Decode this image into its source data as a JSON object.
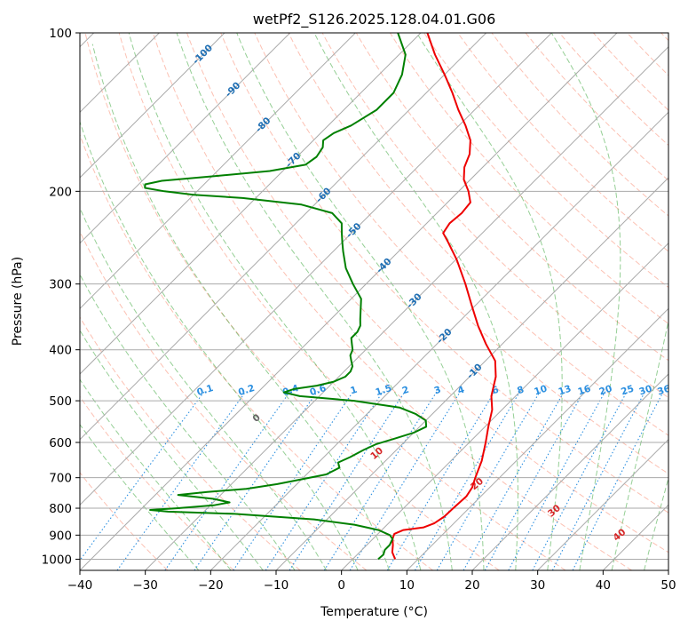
{
  "chart_data": {
    "type": "line",
    "subtype": "skew-t log-p diagram",
    "title": "wetPf2_S126.2025.128.04.01.G06",
    "xlabel": "Temperature (°C)",
    "ylabel": "Pressure (hPa)",
    "xlim": [
      -40,
      50
    ],
    "ylim": [
      1050,
      100
    ],
    "y_scale": "log",
    "skew_deg": 45,
    "x_ticks": [
      "−40",
      "−30",
      "−20",
      "−10",
      "0",
      "10",
      "20",
      "30",
      "40",
      "50"
    ],
    "x_tick_values": [
      -40,
      -30,
      -20,
      -10,
      0,
      10,
      20,
      30,
      40,
      50
    ],
    "y_ticks": [
      "100",
      "200",
      "300",
      "400",
      "500",
      "600",
      "700",
      "800",
      "900",
      "1000"
    ],
    "y_tick_values": [
      100,
      200,
      300,
      400,
      500,
      600,
      700,
      800,
      900,
      1000
    ],
    "grid": true,
    "colors": {
      "temperature": "#ee0000",
      "dewpoint": "#008000",
      "isotherm": "#aaaaaa",
      "dry_adiabat": "#fa8e74",
      "moist_adiabat": "#2ca02c",
      "mixing_ratio": "#2b8fe0",
      "isotherm_label": "#1f6fb4",
      "mixing_label": "#2b8fe0",
      "moist_label": "#d62728",
      "moist_zero_label": "#666666",
      "grid": "#aaaaaa"
    },
    "isotherm_labels": [
      {
        "value": -100,
        "text": "-100"
      },
      {
        "value": -90,
        "text": "-90"
      },
      {
        "value": -80,
        "text": "-80"
      },
      {
        "value": -70,
        "text": "-70"
      },
      {
        "value": -60,
        "text": "-60"
      },
      {
        "value": -50,
        "text": "-50"
      },
      {
        "value": -40,
        "text": "-40"
      },
      {
        "value": -30,
        "text": "-30"
      },
      {
        "value": -20,
        "text": "-20"
      },
      {
        "value": -10,
        "text": "-10"
      }
    ],
    "mixing_ratio_labels": [
      "0.1",
      "0.2",
      "0.4",
      "0.6",
      "1",
      "1.5",
      "2",
      "3",
      "4",
      "6",
      "8",
      "10",
      "13",
      "16",
      "20",
      "25",
      "30",
      "36"
    ],
    "mixing_ratio_values": [
      0.1,
      0.2,
      0.4,
      0.6,
      1,
      1.5,
      2,
      3,
      4,
      6,
      8,
      10,
      13,
      16,
      20,
      25,
      30,
      36
    ],
    "moist_adiabat_labels": [
      {
        "text": "0",
        "theta_w": 0
      },
      {
        "text": "10",
        "theta_w": 10
      },
      {
        "text": "20",
        "theta_w": 20
      },
      {
        "text": "30",
        "theta_w": 30
      },
      {
        "text": "40",
        "theta_w": 40
      }
    ],
    "series": [
      {
        "role": "temperature",
        "color": "#ee0000",
        "points": [
          {
            "p": 1000,
            "t": 6.5
          },
          {
            "p": 970,
            "t": 5.0
          },
          {
            "p": 940,
            "t": 4.0
          },
          {
            "p": 915,
            "t": 3.0
          },
          {
            "p": 895,
            "t": 2.5
          },
          {
            "p": 880,
            "t": 3.3
          },
          {
            "p": 870,
            "t": 6.0
          },
          {
            "p": 855,
            "t": 7.0
          },
          {
            "p": 830,
            "t": 7.5
          },
          {
            "p": 800,
            "t": 7.6
          },
          {
            "p": 760,
            "t": 7.8
          },
          {
            "p": 730,
            "t": 7.3
          },
          {
            "p": 700,
            "t": 6.3
          },
          {
            "p": 650,
            "t": 4.7
          },
          {
            "p": 600,
            "t": 2.5
          },
          {
            "p": 560,
            "t": 0.5
          },
          {
            "p": 520,
            "t": -1.5
          },
          {
            "p": 490,
            "t": -3.7
          },
          {
            "p": 450,
            "t": -6.0
          },
          {
            "p": 420,
            "t": -8.5
          },
          {
            "p": 390,
            "t": -12.5
          },
          {
            "p": 360,
            "t": -16.5
          },
          {
            "p": 330,
            "t": -20.5
          },
          {
            "p": 300,
            "t": -24.8
          },
          {
            "p": 270,
            "t": -29.8
          },
          {
            "p": 250,
            "t": -33.8
          },
          {
            "p": 240,
            "t": -36.0
          },
          {
            "p": 230,
            "t": -36.5
          },
          {
            "p": 220,
            "t": -36.2
          },
          {
            "p": 210,
            "t": -36.5
          },
          {
            "p": 200,
            "t": -38.5
          },
          {
            "p": 190,
            "t": -41.0
          },
          {
            "p": 180,
            "t": -42.8
          },
          {
            "p": 170,
            "t": -44.0
          },
          {
            "p": 160,
            "t": -46.0
          },
          {
            "p": 150,
            "t": -49.0
          },
          {
            "p": 140,
            "t": -52.5
          },
          {
            "p": 130,
            "t": -56.0
          },
          {
            "p": 120,
            "t": -60.0
          },
          {
            "p": 110,
            "t": -64.5
          },
          {
            "p": 100,
            "t": -69.0
          }
        ]
      },
      {
        "role": "dewpoint",
        "color": "#008000",
        "points": [
          {
            "p": 1000,
            "t": 3.9
          },
          {
            "p": 980,
            "t": 4.0
          },
          {
            "p": 960,
            "t": 3.5
          },
          {
            "p": 940,
            "t": 3.5
          },
          {
            "p": 915,
            "t": 3.0
          },
          {
            "p": 900,
            "t": 2.0
          },
          {
            "p": 880,
            "t": -0.5
          },
          {
            "p": 860,
            "t": -5.0
          },
          {
            "p": 840,
            "t": -12.0
          },
          {
            "p": 820,
            "t": -25.0
          },
          {
            "p": 812,
            "t": -35.5
          },
          {
            "p": 806,
            "t": -38.5
          },
          {
            "p": 800,
            "t": -34.5
          },
          {
            "p": 790,
            "t": -29.5
          },
          {
            "p": 780,
            "t": -27.5
          },
          {
            "p": 768,
            "t": -30.5
          },
          {
            "p": 755,
            "t": -36.5
          },
          {
            "p": 745,
            "t": -32.5
          },
          {
            "p": 735,
            "t": -27.0
          },
          {
            "p": 720,
            "t": -23.0
          },
          {
            "p": 705,
            "t": -20.0
          },
          {
            "p": 690,
            "t": -17.0
          },
          {
            "p": 670,
            "t": -16.0
          },
          {
            "p": 655,
            "t": -17.0
          },
          {
            "p": 640,
            "t": -16.0
          },
          {
            "p": 620,
            "t": -15.0
          },
          {
            "p": 605,
            "t": -14.0
          },
          {
            "p": 590,
            "t": -12.0
          },
          {
            "p": 575,
            "t": -10.0
          },
          {
            "p": 560,
            "t": -9.0
          },
          {
            "p": 545,
            "t": -10.0
          },
          {
            "p": 530,
            "t": -12.5
          },
          {
            "p": 515,
            "t": -16.0
          },
          {
            "p": 500,
            "t": -24.0
          },
          {
            "p": 490,
            "t": -33.0
          },
          {
            "p": 482,
            "t": -36.0
          },
          {
            "p": 475,
            "t": -35.0
          },
          {
            "p": 468,
            "t": -32.0
          },
          {
            "p": 460,
            "t": -30.0
          },
          {
            "p": 450,
            "t": -29.0
          },
          {
            "p": 440,
            "t": -29.0
          },
          {
            "p": 430,
            "t": -29.5
          },
          {
            "p": 420,
            "t": -30.5
          },
          {
            "p": 410,
            "t": -31.5
          },
          {
            "p": 400,
            "t": -32.0
          },
          {
            "p": 390,
            "t": -33.0
          },
          {
            "p": 380,
            "t": -34.0
          },
          {
            "p": 370,
            "t": -34.0
          },
          {
            "p": 360,
            "t": -34.5
          },
          {
            "p": 350,
            "t": -35.5
          },
          {
            "p": 320,
            "t": -38.5
          },
          {
            "p": 300,
            "t": -42.0
          },
          {
            "p": 280,
            "t": -45.5
          },
          {
            "p": 260,
            "t": -48.5
          },
          {
            "p": 250,
            "t": -50.0
          },
          {
            "p": 240,
            "t": -51.5
          },
          {
            "p": 230,
            "t": -53.0
          },
          {
            "p": 220,
            "t": -56.0
          },
          {
            "p": 212,
            "t": -62.0
          },
          {
            "p": 206,
            "t": -72.0
          },
          {
            "p": 203,
            "t": -80.0
          },
          {
            "p": 200,
            "t": -85.0
          },
          {
            "p": 197,
            "t": -88.5
          },
          {
            "p": 194,
            "t": -89.0
          },
          {
            "p": 191,
            "t": -87.0
          },
          {
            "p": 187,
            "t": -79.5
          },
          {
            "p": 183,
            "t": -72.0
          },
          {
            "p": 178,
            "t": -67.5
          },
          {
            "p": 172,
            "t": -67.0
          },
          {
            "p": 165,
            "t": -67.5
          },
          {
            "p": 160,
            "t": -68.5
          },
          {
            "p": 155,
            "t": -68.0
          },
          {
            "p": 150,
            "t": -66.5
          },
          {
            "p": 140,
            "t": -65.0
          },
          {
            "p": 130,
            "t": -65.0
          },
          {
            "p": 120,
            "t": -66.5
          },
          {
            "p": 110,
            "t": -69.0
          },
          {
            "p": 100,
            "t": -73.5
          }
        ]
      }
    ]
  }
}
